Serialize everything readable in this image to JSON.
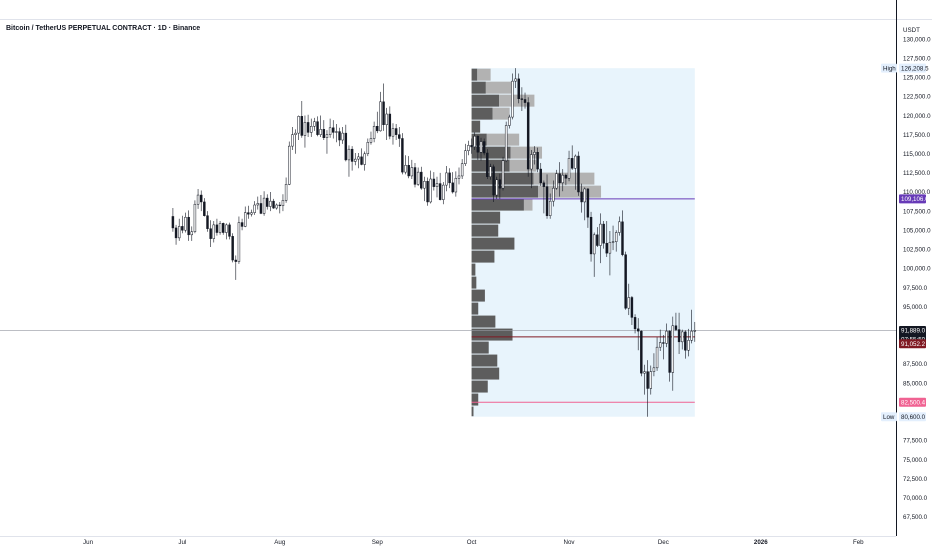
{
  "header": {
    "title": "Bitcoin / TetherUS PERPETUAL CONTRACT · 1D · Binance"
  },
  "axis": {
    "unit": "USDT"
  },
  "chart_data": {
    "type": "candlestick",
    "title": "Bitcoin / TetherUS PERPETUAL CONTRACT · 1D · Binance",
    "ylabel": "USDT",
    "ylim": [
      65000,
      132500
    ],
    "y_ticks": [
      {
        "v": 130000,
        "label": "130,000.0"
      },
      {
        "v": 127500,
        "label": "127,500.0"
      },
      {
        "v": 125000,
        "label": "125,000.0"
      },
      {
        "v": 122500,
        "label": "122,500.0"
      },
      {
        "v": 120000,
        "label": "120,000.0"
      },
      {
        "v": 117500,
        "label": "117,500.0"
      },
      {
        "v": 115000,
        "label": "115,000.0"
      },
      {
        "v": 112500,
        "label": "112,500.0"
      },
      {
        "v": 110000,
        "label": "110,000.0"
      },
      {
        "v": 107500,
        "label": "107,500.0"
      },
      {
        "v": 105000,
        "label": "105,000.0"
      },
      {
        "v": 102500,
        "label": "102,500.0"
      },
      {
        "v": 100000,
        "label": "100,000.0"
      },
      {
        "v": 97500,
        "label": "97,500.0"
      },
      {
        "v": 95000,
        "label": "95,000.0"
      },
      {
        "v": 87500,
        "label": "87,500.0"
      },
      {
        "v": 85000,
        "label": "85,000.0"
      },
      {
        "v": 77500,
        "label": "77,500.0"
      },
      {
        "v": 75000,
        "label": "75,000.0"
      },
      {
        "v": 72500,
        "label": "72,500.0"
      },
      {
        "v": 70000,
        "label": "70,000.0"
      },
      {
        "v": 67500,
        "label": "67,500.0"
      }
    ],
    "x_ticks": [
      {
        "label": "Jun",
        "day": 15
      },
      {
        "label": "Jul",
        "day": 45
      },
      {
        "label": "Aug",
        "day": 76
      },
      {
        "label": "Sep",
        "day": 107
      },
      {
        "label": "Oct",
        "day": 137
      },
      {
        "label": "Nov",
        "day": 168
      },
      {
        "label": "Dec",
        "day": 198
      },
      {
        "label": "2026",
        "day": 229
      },
      {
        "label": "Feb",
        "day": 260
      }
    ],
    "x_range_days": [
      -13,
      272
    ],
    "ohlc": [
      [
        106800,
        107900,
        104800,
        105300
      ],
      [
        105300,
        105700,
        103100,
        104000
      ],
      [
        104000,
        106500,
        103600,
        105500
      ],
      [
        105500,
        106900,
        104600,
        105000
      ],
      [
        105000,
        107300,
        104700,
        106700
      ],
      [
        106700,
        107600,
        103600,
        104400
      ],
      [
        104400,
        105500,
        103600,
        104800
      ],
      [
        104800,
        108900,
        104600,
        108400
      ],
      [
        108400,
        110400,
        107800,
        109600
      ],
      [
        109600,
        110200,
        107500,
        108700
      ],
      [
        108700,
        109200,
        106800,
        106900
      ],
      [
        106900,
        107500,
        104800,
        105200
      ],
      [
        105200,
        106300,
        102800,
        103900
      ],
      [
        103900,
        106200,
        103400,
        105700
      ],
      [
        105700,
        106500,
        104300,
        104700
      ],
      [
        104700,
        106200,
        104400,
        105900
      ],
      [
        105900,
        106000,
        104400,
        104700
      ],
      [
        104700,
        105900,
        103800,
        105700
      ],
      [
        105700,
        106000,
        103800,
        104200
      ],
      [
        104200,
        104600,
        100800,
        101100
      ],
      [
        101100,
        101700,
        98500,
        100900
      ],
      [
        100900,
        106800,
        100600,
        106000
      ],
      [
        106000,
        106500,
        105000,
        105500
      ],
      [
        105500,
        108100,
        105400,
        107300
      ],
      [
        107300,
        108200,
        106500,
        107100
      ],
      [
        107100,
        107700,
        106800,
        107300
      ],
      [
        107300,
        108800,
        107000,
        108300
      ],
      [
        108300,
        109400,
        107700,
        108500
      ],
      [
        108500,
        109600,
        107100,
        107200
      ],
      [
        107200,
        110100,
        106900,
        109200
      ],
      [
        109200,
        109700,
        107700,
        108100
      ],
      [
        108100,
        110000,
        107500,
        108800
      ],
      [
        108800,
        109100,
        107800,
        107900
      ],
      [
        107900,
        108500,
        107700,
        108300
      ],
      [
        108300,
        108700,
        107200,
        108200
      ],
      [
        108200,
        109700,
        107500,
        108900
      ],
      [
        108900,
        111900,
        108600,
        111000
      ],
      [
        111000,
        116600,
        110900,
        116000
      ],
      [
        116000,
        118500,
        115500,
        117500
      ],
      [
        117500,
        118200,
        115000,
        117700
      ],
      [
        117700,
        120000,
        116800,
        119900
      ],
      [
        119900,
        121900,
        117100,
        117400
      ],
      [
        117400,
        120000,
        115800,
        119100
      ],
      [
        119100,
        120100,
        117200,
        117800
      ],
      [
        117800,
        119600,
        117200,
        118600
      ],
      [
        118600,
        119700,
        118000,
        119200
      ],
      [
        119200,
        119900,
        117300,
        117500
      ],
      [
        117500,
        120000,
        117200,
        118200
      ],
      [
        118200,
        119400,
        116800,
        117100
      ],
      [
        117100,
        118100,
        115000,
        117500
      ],
      [
        117500,
        119600,
        117100,
        118400
      ],
      [
        118400,
        119400,
        117000,
        117800
      ],
      [
        117800,
        118900,
        116500,
        117900
      ],
      [
        117900,
        118400,
        116000,
        116800
      ],
      [
        116800,
        118500,
        116300,
        117700
      ],
      [
        117700,
        118800,
        114000,
        114200
      ],
      [
        114200,
        116100,
        112000,
        115600
      ],
      [
        115600,
        116000,
        112800,
        114000
      ],
      [
        114000,
        115100,
        113500,
        114300
      ],
      [
        114300,
        115100,
        113100,
        114600
      ],
      [
        114600,
        115700,
        113500,
        113600
      ],
      [
        113600,
        115300,
        112800,
        115000
      ],
      [
        115000,
        117000,
        114700,
        116500
      ],
      [
        116500,
        117900,
        116200,
        117000
      ],
      [
        117000,
        119200,
        116500,
        118600
      ],
      [
        118600,
        120500,
        117700,
        118000
      ],
      [
        118000,
        123100,
        117900,
        121800
      ],
      [
        121800,
        124200,
        118000,
        118800
      ],
      [
        118800,
        121000,
        116800,
        120200
      ],
      [
        120200,
        121200,
        116900,
        117300
      ],
      [
        117300,
        119000,
        116200,
        118300
      ],
      [
        118300,
        118900,
        116800,
        117500
      ],
      [
        117500,
        118500,
        115900,
        117000
      ],
      [
        117000,
        117700,
        112300,
        112600
      ],
      [
        112600,
        114800,
        112300,
        113500
      ],
      [
        113500,
        114700,
        111800,
        112100
      ],
      [
        112100,
        114200,
        111700,
        113200
      ],
      [
        113200,
        113800,
        110600,
        111000
      ],
      [
        111000,
        113200,
        110800,
        112600
      ],
      [
        112600,
        113300,
        110300,
        110500
      ],
      [
        110500,
        112000,
        108800,
        111400
      ],
      [
        111400,
        111900,
        108200,
        108700
      ],
      [
        108700,
        112800,
        108500,
        111700
      ],
      [
        111700,
        112600,
        110200,
        110700
      ],
      [
        110700,
        112000,
        109300,
        111100
      ],
      [
        111100,
        112500,
        108900,
        109000
      ],
      [
        109000,
        111300,
        108400,
        110900
      ],
      [
        110900,
        113400,
        110100,
        112500
      ],
      [
        112500,
        113100,
        110500,
        111200
      ],
      [
        111200,
        112600,
        109800,
        110000
      ],
      [
        110000,
        112700,
        109400,
        111800
      ],
      [
        111800,
        113200,
        111000,
        112100
      ],
      [
        112100,
        114300,
        111700,
        113700
      ],
      [
        113700,
        116300,
        113400,
        115400
      ],
      [
        115400,
        116700,
        114800,
        116100
      ],
      [
        116100,
        117000,
        115000,
        115900
      ],
      [
        115900,
        117800,
        115500,
        117300
      ],
      [
        117300,
        117400,
        114200,
        115200
      ],
      [
        115200,
        117100,
        114100,
        116600
      ],
      [
        116600,
        117000,
        114800,
        115100
      ],
      [
        115100,
        115600,
        111700,
        112000
      ],
      [
        112000,
        113700,
        111600,
        113300
      ],
      [
        113300,
        113600,
        108700,
        109600
      ],
      [
        109600,
        112000,
        109100,
        111600
      ],
      [
        111600,
        112400,
        109100,
        110500
      ],
      [
        110500,
        114600,
        110200,
        114100
      ],
      [
        114100,
        119200,
        113900,
        118700
      ],
      [
        118700,
        120100,
        118300,
        119800
      ],
      [
        119800,
        125500,
        119500,
        124500
      ],
      [
        124500,
        126200,
        123600,
        124800
      ],
      [
        124800,
        125500,
        121600,
        122200
      ],
      [
        122200,
        123700,
        120600,
        122100
      ],
      [
        122100,
        123000,
        120900,
        121700
      ],
      [
        121700,
        122400,
        112000,
        113000
      ],
      [
        113000,
        115500,
        110500,
        114900
      ],
      [
        114900,
        116000,
        113600,
        115200
      ],
      [
        115200,
        115800,
        112600,
        113000
      ],
      [
        113000,
        113800,
        110800,
        111200
      ],
      [
        111200,
        111500,
        107200,
        110700
      ],
      [
        110700,
        112300,
        106500,
        106900
      ],
      [
        106900,
        109800,
        106500,
        108800
      ],
      [
        108800,
        111500,
        108100,
        110500
      ],
      [
        110500,
        112900,
        110300,
        112400
      ],
      [
        112400,
        113900,
        109400,
        111200
      ],
      [
        111200,
        113000,
        110100,
        112200
      ],
      [
        112200,
        112400,
        110900,
        111800
      ],
      [
        111800,
        115400,
        111400,
        114400
      ],
      [
        114400,
        116100,
        112900,
        113100
      ],
      [
        113100,
        114900,
        110300,
        114700
      ],
      [
        114700,
        115300,
        109500,
        110000
      ],
      [
        110000,
        111100,
        107300,
        108700
      ],
      [
        108700,
        110600,
        106300,
        110400
      ],
      [
        110400,
        110500,
        105300,
        106700
      ],
      [
        106700,
        107400,
        100900,
        101900
      ],
      [
        101900,
        104700,
        98900,
        104400
      ],
      [
        104400,
        105400,
        102800,
        103000
      ],
      [
        103000,
        107200,
        100700,
        105800
      ],
      [
        105800,
        106200,
        102600,
        103300
      ],
      [
        103300,
        106200,
        101500,
        102000
      ],
      [
        102000,
        104900,
        99100,
        103400
      ],
      [
        103400,
        105600,
        102400,
        103500
      ],
      [
        103500,
        105000,
        102200,
        104700
      ],
      [
        104700,
        106800,
        104300,
        106100
      ],
      [
        106100,
        107600,
        101600,
        101800
      ],
      [
        101800,
        102200,
        94600,
        94800
      ],
      [
        94800,
        98000,
        93900,
        96200
      ],
      [
        96200,
        96400,
        92600,
        93600
      ],
      [
        93600,
        94000,
        91500,
        92100
      ],
      [
        92100,
        93500,
        89300,
        91800
      ],
      [
        91800,
        91900,
        85900,
        86300
      ],
      [
        86300,
        87400,
        83500,
        86500
      ],
      [
        86500,
        88000,
        80600,
        84300
      ],
      [
        84300,
        87300,
        83500,
        86500
      ],
      [
        86500,
        88900,
        85900,
        87000
      ],
      [
        87000,
        91000,
        86600,
        89700
      ],
      [
        89700,
        92000,
        89200,
        90300
      ],
      [
        90300,
        91300,
        88100,
        90200
      ],
      [
        90200,
        92800,
        89700,
        91800
      ],
      [
        91800,
        91900,
        85200,
        86400
      ],
      [
        86400,
        93700,
        84000,
        92500
      ],
      [
        92500,
        94200,
        91800,
        92000
      ],
      [
        92000,
        94200,
        88800,
        90400
      ],
      [
        90400,
        92000,
        89400,
        91700
      ],
      [
        91700,
        91900,
        88200,
        89300
      ],
      [
        89300,
        92100,
        88500,
        90600
      ],
      [
        90600,
        94600,
        90200,
        91800
      ],
      [
        91800,
        93000,
        90400,
        91889
      ]
    ],
    "last_price": {
      "value": 91889.0,
      "label": "91,889.0",
      "countdown": "07:55:50"
    },
    "levels": [
      {
        "name": "value-area-high",
        "value": 109106.0,
        "label": "109,106.0",
        "color": "#673ab7"
      },
      {
        "name": "point-of-control",
        "value": 91052.2,
        "label": "91,052.2",
        "color": "#801922"
      },
      {
        "name": "value-area-low",
        "value": 82500.4,
        "label": "82,500.4",
        "color": "#f06292"
      }
    ],
    "high": {
      "tag": "High",
      "value": 126208.5,
      "label": "126,208.5"
    },
    "low": {
      "tag": "Low",
      "value": 80600.0,
      "label": "80,600.0"
    },
    "volume_profile": {
      "day_start": 137,
      "day_end": 208,
      "bins": [
        {
          "lo": 124500,
          "hi": 126200,
          "up": 0.6,
          "down": 1.4
        },
        {
          "lo": 122800,
          "hi": 124500,
          "up": 1.5,
          "down": 2.7
        },
        {
          "lo": 121100,
          "hi": 122800,
          "up": 2.9,
          "down": 3.7
        },
        {
          "lo": 119400,
          "hi": 121100,
          "up": 2.2,
          "down": 1.8
        },
        {
          "lo": 117700,
          "hi": 119400,
          "up": 0.9,
          "down": 0.0
        },
        {
          "lo": 116000,
          "hi": 117700,
          "up": 1.6,
          "down": 3.4
        },
        {
          "lo": 114300,
          "hi": 116000,
          "up": 4.1,
          "down": 3.3
        },
        {
          "lo": 112600,
          "hi": 114300,
          "up": 4.0,
          "down": 2.8
        },
        {
          "lo": 110900,
          "hi": 112600,
          "up": 6.5,
          "down": 6.4
        },
        {
          "lo": 109200,
          "hi": 110900,
          "up": 7.0,
          "down": 6.6
        },
        {
          "lo": 107500,
          "hi": 109200,
          "up": 5.5,
          "down": 0.9
        },
        {
          "lo": 105800,
          "hi": 107500,
          "up": 3.0,
          "down": 0.0
        },
        {
          "lo": 104100,
          "hi": 105800,
          "up": 2.8,
          "down": 0.0
        },
        {
          "lo": 102400,
          "hi": 104100,
          "up": 4.5,
          "down": 0.0
        },
        {
          "lo": 100700,
          "hi": 102400,
          "up": 2.4,
          "down": 0.0
        },
        {
          "lo": 99000,
          "hi": 100700,
          "up": 0.4,
          "down": 0.0
        },
        {
          "lo": 97300,
          "hi": 99000,
          "up": 0.5,
          "down": 0.0
        },
        {
          "lo": 95600,
          "hi": 97300,
          "up": 1.4,
          "down": 0.0
        },
        {
          "lo": 93900,
          "hi": 95600,
          "up": 0.7,
          "down": 0.0
        },
        {
          "lo": 92200,
          "hi": 93900,
          "up": 2.5,
          "down": 0.0
        },
        {
          "lo": 90500,
          "hi": 92200,
          "up": 4.3,
          "down": 0.0
        },
        {
          "lo": 88800,
          "hi": 90500,
          "up": 1.8,
          "down": 0.0
        },
        {
          "lo": 87100,
          "hi": 88800,
          "up": 2.7,
          "down": 0.0
        },
        {
          "lo": 85400,
          "hi": 87100,
          "up": 2.9,
          "down": 0.0
        },
        {
          "lo": 83700,
          "hi": 85400,
          "up": 1.7,
          "down": 0.0
        },
        {
          "lo": 82000,
          "hi": 83700,
          "up": 0.7,
          "down": 0.0
        },
        {
          "lo": 80600,
          "hi": 82000,
          "up": 0.2,
          "down": 0.0
        }
      ]
    },
    "colors": {
      "up": "#131722",
      "down": "#131722",
      "profile_up": "#5d5d5d",
      "profile_down": "#b2b2b2",
      "profile_bg": "#e8f4fc",
      "price_line": "#9598a1"
    }
  }
}
